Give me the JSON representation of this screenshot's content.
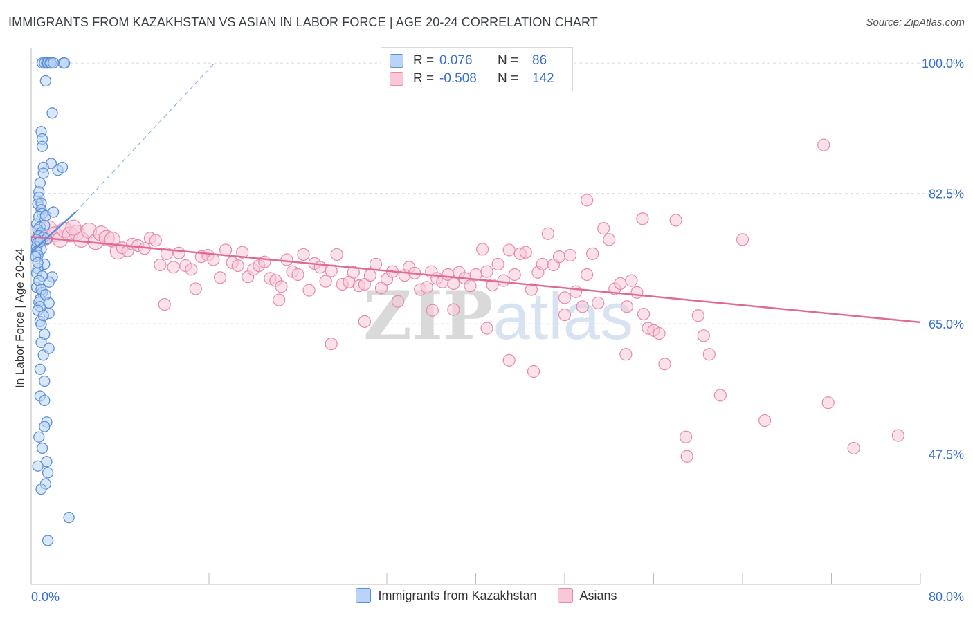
{
  "title": "IMMIGRANTS FROM KAZAKHSTAN VS ASIAN IN LABOR FORCE | AGE 20-24 CORRELATION CHART",
  "source": "Source: ZipAtlas.com",
  "watermark": "ZIPatlas",
  "stats": [
    {
      "r_label": "R =",
      "r_value": "0.076",
      "n_label": "N =",
      "n_value": "86"
    },
    {
      "r_label": "R =",
      "r_value": "-0.508",
      "n_label": "N =",
      "n_value": "142"
    }
  ],
  "legend": [
    "Immigrants from Kazakhstan",
    "Asians"
  ],
  "colors": {
    "blue": "#5b8fd8",
    "blue_fill": "#b9d4f7",
    "pink": "#e06a96",
    "pink_fill": "#f8c8d8",
    "axis_label": "#3b6fcf"
  },
  "chart_data": {
    "type": "scatter",
    "xlabel": "",
    "ylabel": "In Labor Force | Age 20-24",
    "xlim": [
      0,
      80
    ],
    "ylim": [
      30,
      101.5
    ],
    "x_tick_labels": [
      "0.0%",
      "80.0%"
    ],
    "y_ticks": [
      47.5,
      65.0,
      82.5,
      100.0
    ],
    "y_tick_labels": [
      "47.5%",
      "65.0%",
      "82.5%",
      "100.0%"
    ],
    "grid": true,
    "series": [
      {
        "name": "Immigrants from Kazakhstan",
        "color": "#5b8fd8",
        "trend": {
          "x": [
            0,
            4.0
          ],
          "y": [
            74.6,
            80.0
          ]
        },
        "trend_dashed": {
          "x": [
            4.0,
            16.5
          ],
          "y": [
            80.0,
            100.0
          ]
        },
        "points": [
          [
            1.0,
            100
          ],
          [
            1.2,
            100
          ],
          [
            1.4,
            100
          ],
          [
            1.5,
            100
          ],
          [
            1.7,
            100
          ],
          [
            1.8,
            100
          ],
          [
            2.0,
            100
          ],
          [
            2.9,
            100
          ],
          [
            3.0,
            100
          ],
          [
            1.3,
            97.6
          ],
          [
            1.9,
            93.3
          ],
          [
            0.9,
            90.8
          ],
          [
            1.0,
            89.8
          ],
          [
            1.0,
            88.8
          ],
          [
            1.8,
            86.5
          ],
          [
            1.1,
            86.0
          ],
          [
            1.1,
            85.2
          ],
          [
            2.4,
            85.6
          ],
          [
            2.8,
            86.0
          ],
          [
            0.8,
            83.9
          ],
          [
            0.7,
            82.7
          ],
          [
            0.7,
            82.0
          ],
          [
            0.6,
            81.1
          ],
          [
            0.9,
            81.2
          ],
          [
            0.9,
            80.3
          ],
          [
            1.0,
            79.8
          ],
          [
            0.7,
            79.4
          ],
          [
            1.3,
            79.5
          ],
          [
            2.0,
            80.0
          ],
          [
            0.5,
            78.4
          ],
          [
            0.8,
            78.0
          ],
          [
            1.2,
            78.2
          ],
          [
            0.6,
            77.6
          ],
          [
            0.9,
            77.2
          ],
          [
            0.7,
            76.8
          ],
          [
            1.1,
            76.6
          ],
          [
            0.5,
            76.3
          ],
          [
            1.4,
            76.4
          ],
          [
            0.6,
            75.9
          ],
          [
            0.5,
            75.3
          ],
          [
            0.9,
            75.0
          ],
          [
            0.5,
            74.7
          ],
          [
            0.6,
            74.2
          ],
          [
            0.4,
            74.0
          ],
          [
            1.2,
            73.0
          ],
          [
            0.6,
            72.4
          ],
          [
            0.5,
            71.8
          ],
          [
            1.9,
            71.3
          ],
          [
            1.6,
            70.6
          ],
          [
            0.5,
            69.9
          ],
          [
            1.0,
            69.2
          ],
          [
            0.8,
            68.3
          ],
          [
            0.7,
            67.9
          ],
          [
            1.6,
            67.8
          ],
          [
            0.8,
            67.3
          ],
          [
            1.6,
            66.4
          ],
          [
            0.8,
            65.3
          ],
          [
            0.9,
            64.9
          ],
          [
            1.2,
            63.6
          ],
          [
            1.1,
            60.8
          ],
          [
            1.2,
            57.3
          ],
          [
            0.8,
            55.3
          ],
          [
            1.4,
            51.8
          ],
          [
            1.2,
            51.2
          ],
          [
            1.4,
            46.5
          ],
          [
            1.5,
            45.0
          ],
          [
            1.3,
            43.5
          ],
          [
            0.9,
            42.8
          ],
          [
            3.4,
            39.0
          ],
          [
            1.5,
            35.9
          ],
          [
            0.8,
            76.0
          ],
          [
            0.6,
            73.2
          ],
          [
            1.0,
            71.4
          ],
          [
            0.7,
            70.8
          ],
          [
            0.9,
            69.6
          ],
          [
            1.3,
            68.9
          ],
          [
            0.6,
            66.8
          ],
          [
            1.1,
            66.1
          ],
          [
            0.9,
            62.5
          ],
          [
            1.6,
            61.7
          ],
          [
            0.8,
            58.9
          ],
          [
            1.2,
            54.7
          ],
          [
            0.7,
            49.8
          ],
          [
            1.0,
            48.3
          ],
          [
            0.6,
            45.9
          ]
        ]
      },
      {
        "name": "Asians",
        "color": "#e06a96",
        "trend": {
          "x": [
            0,
            80
          ],
          "y": [
            76.7,
            65.2
          ]
        },
        "points": [
          [
            0.8,
            76.8
          ],
          [
            1.3,
            76.6
          ],
          [
            1.6,
            77.8
          ],
          [
            2.1,
            77.0
          ],
          [
            2.6,
            76.3
          ],
          [
            3.0,
            77.6
          ],
          [
            3.5,
            77.0
          ],
          [
            4.1,
            77.2
          ],
          [
            4.5,
            76.3
          ],
          [
            5.2,
            77.5
          ],
          [
            5.8,
            76.0
          ],
          [
            6.3,
            77.1
          ],
          [
            6.8,
            76.5
          ],
          [
            7.3,
            76.3
          ],
          [
            7.8,
            74.7
          ],
          [
            8.2,
            75.2
          ],
          [
            8.7,
            74.8
          ],
          [
            9.1,
            75.7
          ],
          [
            9.6,
            75.5
          ],
          [
            10.2,
            75.1
          ],
          [
            10.7,
            76.5
          ],
          [
            11.2,
            76.2
          ],
          [
            11.6,
            72.9
          ],
          [
            12.2,
            74.4
          ],
          [
            12.8,
            72.6
          ],
          [
            13.3,
            74.5
          ],
          [
            13.9,
            72.8
          ],
          [
            14.4,
            72.3
          ],
          [
            14.8,
            69.7
          ],
          [
            15.3,
            74.0
          ],
          [
            15.9,
            74.2
          ],
          [
            16.4,
            73.6
          ],
          [
            17.0,
            71.2
          ],
          [
            17.5,
            74.9
          ],
          [
            18.1,
            73.2
          ],
          [
            18.6,
            72.8
          ],
          [
            19.0,
            74.6
          ],
          [
            19.5,
            71.3
          ],
          [
            20.0,
            72.3
          ],
          [
            20.5,
            72.8
          ],
          [
            21.0,
            73.3
          ],
          [
            21.5,
            71.1
          ],
          [
            22.0,
            70.8
          ],
          [
            22.5,
            70.0
          ],
          [
            23.0,
            73.6
          ],
          [
            23.5,
            72.0
          ],
          [
            24.0,
            71.6
          ],
          [
            24.5,
            74.3
          ],
          [
            25.0,
            69.5
          ],
          [
            25.5,
            73.1
          ],
          [
            26.0,
            72.6
          ],
          [
            26.5,
            70.7
          ],
          [
            27.0,
            72.1
          ],
          [
            27.5,
            74.3
          ],
          [
            28.0,
            70.3
          ],
          [
            28.6,
            70.6
          ],
          [
            29.0,
            71.9
          ],
          [
            29.5,
            70.1
          ],
          [
            30.0,
            70.3
          ],
          [
            30.5,
            71.5
          ],
          [
            31.0,
            73.0
          ],
          [
            31.5,
            69.8
          ],
          [
            32.0,
            71.0
          ],
          [
            32.5,
            72.0
          ],
          [
            33.0,
            68.0
          ],
          [
            33.6,
            71.5
          ],
          [
            34.0,
            72.6
          ],
          [
            34.5,
            71.8
          ],
          [
            35.0,
            69.6
          ],
          [
            35.6,
            69.9
          ],
          [
            36.0,
            72.0
          ],
          [
            36.5,
            71.1
          ],
          [
            37.0,
            70.6
          ],
          [
            37.5,
            71.6
          ],
          [
            38.0,
            70.4
          ],
          [
            38.5,
            71.9
          ],
          [
            39.0,
            71.1
          ],
          [
            39.5,
            70.1
          ],
          [
            40.0,
            71.6
          ],
          [
            40.6,
            75.0
          ],
          [
            41.0,
            72.0
          ],
          [
            41.5,
            70.2
          ],
          [
            42.0,
            73.0
          ],
          [
            42.5,
            70.8
          ],
          [
            43.0,
            74.9
          ],
          [
            43.5,
            71.6
          ],
          [
            44.0,
            74.4
          ],
          [
            44.5,
            74.6
          ],
          [
            45.0,
            69.6
          ],
          [
            45.6,
            71.9
          ],
          [
            46.0,
            73.0
          ],
          [
            46.5,
            77.1
          ],
          [
            47.0,
            72.9
          ],
          [
            47.5,
            74.0
          ],
          [
            48.0,
            68.5
          ],
          [
            48.5,
            74.2
          ],
          [
            49.0,
            69.3
          ],
          [
            49.6,
            67.3
          ],
          [
            50.0,
            71.6
          ],
          [
            50.5,
            74.4
          ],
          [
            51.0,
            67.8
          ],
          [
            51.5,
            77.8
          ],
          [
            52.0,
            76.3
          ],
          [
            52.5,
            69.7
          ],
          [
            53.0,
            70.4
          ],
          [
            53.6,
            67.3
          ],
          [
            54.0,
            70.8
          ],
          [
            54.5,
            69.2
          ],
          [
            55.0,
            79.1
          ],
          [
            55.5,
            64.4
          ],
          [
            56.0,
            64.1
          ],
          [
            56.5,
            63.7
          ],
          [
            57.0,
            59.6
          ],
          [
            58.0,
            78.9
          ],
          [
            59.0,
            47.2
          ],
          [
            60.0,
            66.1
          ],
          [
            60.5,
            63.4
          ],
          [
            61.0,
            60.9
          ],
          [
            62.0,
            55.4
          ],
          [
            64.0,
            76.3
          ],
          [
            12.0,
            67.6
          ],
          [
            22.3,
            68.2
          ],
          [
            27.0,
            62.3
          ],
          [
            30.0,
            65.3
          ],
          [
            36.1,
            66.8
          ],
          [
            38.0,
            66.9
          ],
          [
            41.0,
            64.4
          ],
          [
            43.0,
            60.1
          ],
          [
            45.2,
            58.6
          ],
          [
            48.0,
            66.2
          ],
          [
            50.0,
            81.6
          ],
          [
            53.5,
            60.9
          ],
          [
            55.1,
            66.3
          ],
          [
            58.9,
            49.8
          ],
          [
            66.0,
            52.0
          ],
          [
            71.3,
            89.0
          ],
          [
            71.7,
            54.4
          ],
          [
            74.0,
            48.3
          ],
          [
            78.0,
            50.0
          ],
          [
            3.8,
            77.9
          ]
        ]
      }
    ]
  }
}
